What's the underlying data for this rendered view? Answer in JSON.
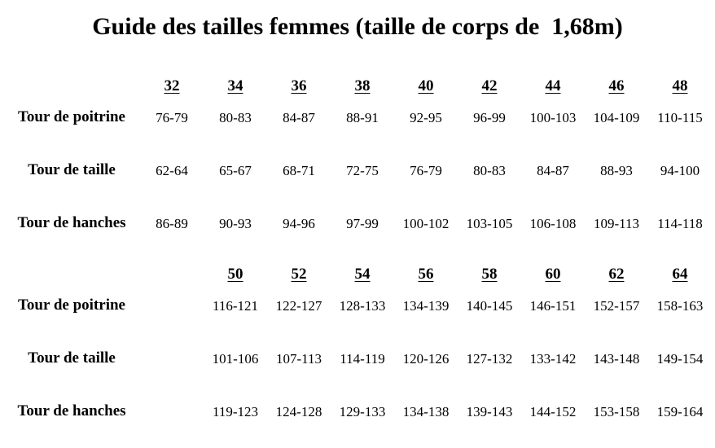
{
  "title": "Guide des tailles femmes (taille de corps de  1,68m)",
  "tables": [
    {
      "sizes": [
        "32",
        "34",
        "36",
        "38",
        "40",
        "42",
        "44",
        "46",
        "48"
      ],
      "rows": [
        {
          "label": "Tour de poitrine",
          "values": [
            "76-79",
            "80-83",
            "84-87",
            "88-91",
            "92-95",
            "96-99",
            "100-103",
            "104-109",
            "110-115"
          ]
        },
        {
          "label": "Tour de taille",
          "values": [
            "62-64",
            "65-67",
            "68-71",
            "72-75",
            "76-79",
            "80-83",
            "84-87",
            "88-93",
            "94-100"
          ]
        },
        {
          "label": "Tour de hanches",
          "values": [
            "86-89",
            "90-93",
            "94-96",
            "97-99",
            "100-102",
            "103-105",
            "106-108",
            "109-113",
            "114-118"
          ]
        }
      ]
    },
    {
      "sizes": [
        "",
        "50",
        "52",
        "54",
        "56",
        "58",
        "60",
        "62",
        "64"
      ],
      "rows": [
        {
          "label": "Tour de poitrine",
          "values": [
            "",
            "116-121",
            "122-127",
            "128-133",
            "134-139",
            "140-145",
            "146-151",
            "152-157",
            "158-163"
          ]
        },
        {
          "label": "Tour de taille",
          "values": [
            "",
            "101-106",
            "107-113",
            "114-119",
            "120-126",
            "127-132",
            "133-142",
            "143-148",
            "149-154"
          ]
        },
        {
          "label": "Tour de hanches",
          "values": [
            "",
            "119-123",
            "124-128",
            "129-133",
            "134-138",
            "139-143",
            "144-152",
            "153-158",
            "159-164"
          ]
        }
      ]
    }
  ]
}
